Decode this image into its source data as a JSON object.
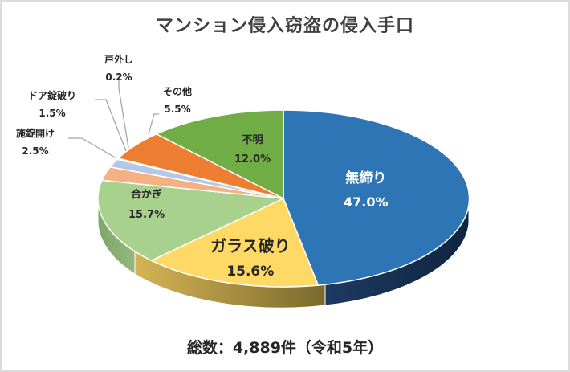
{
  "chart_data": {
    "type": "pie",
    "style": "3d",
    "title": "マンション侵入窃盗の侵入手口",
    "footer": "総数：4,889件（令和5年）",
    "total": 4889,
    "year_label": "令和5年",
    "unit": "%",
    "categories": [
      "無締り",
      "ガラス破り",
      "合かぎ",
      "施錠開け",
      "ドア錠破り",
      "戸外し",
      "その他",
      "不明"
    ],
    "values": [
      47.0,
      15.6,
      15.7,
      2.5,
      1.5,
      0.2,
      5.5,
      12.0
    ],
    "colors": [
      "#2e75b6",
      "#ffd966",
      "#a9d18e",
      "#f4b183",
      "#b4c7e7",
      "#f8cbad",
      "#ed7d31",
      "#70ad47"
    ],
    "side_colors": [
      "#152d4f",
      "#9c8a3a",
      "#7fa86a",
      "#c98a63",
      "#8796b0",
      "#c99f8a",
      "#b55e24",
      "#527f33"
    ],
    "legend": "none (data labels with category names)",
    "slices": [
      {
        "name": "無締り",
        "value": 47.0,
        "label": "47.0%"
      },
      {
        "name": "ガラス破り",
        "value": 15.6,
        "label": "15.6%"
      },
      {
        "name": "合かぎ",
        "value": 15.7,
        "label": "15.7%"
      },
      {
        "name": "施錠開け",
        "value": 2.5,
        "label": "2.5%"
      },
      {
        "name": "ドア錠破り",
        "value": 1.5,
        "label": "1.5%"
      },
      {
        "name": "戸外し",
        "value": 0.2,
        "label": "0.2%"
      },
      {
        "name": "その他",
        "value": 5.5,
        "label": "5.5%"
      },
      {
        "name": "不明",
        "value": 12.0,
        "label": "12.0%"
      }
    ]
  },
  "labels": {
    "mushimari": {
      "name": "無締り",
      "value": "47.0%"
    },
    "garasu": {
      "name": "ガラス破り",
      "value": "15.6%"
    },
    "aikagi": {
      "name": "合かぎ",
      "value": "15.7%"
    },
    "sejo": {
      "name": "施錠開け",
      "value": "2.5%"
    },
    "door": {
      "name": "ドア錠破り",
      "value": "1.5%"
    },
    "togai": {
      "name": "戸外し",
      "value": "0.2%"
    },
    "sonota": {
      "name": "その他",
      "value": "5.5%"
    },
    "fumei": {
      "name": "不明",
      "value": "12.0%"
    }
  }
}
